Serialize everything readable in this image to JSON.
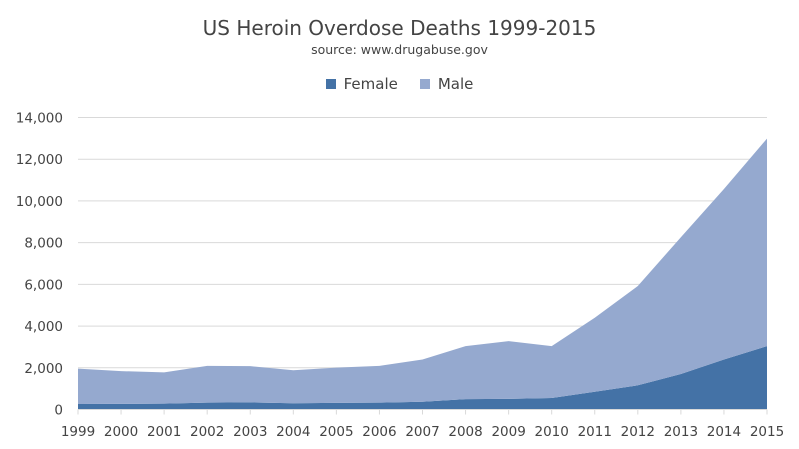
{
  "chart_data": {
    "type": "area",
    "stacked": true,
    "title": "US Heroin Overdose Deaths 1999-2015",
    "subtitle": "source: www.drugabuse.gov",
    "xlabel": "",
    "ylabel": "",
    "ylim": [
      0,
      14000
    ],
    "yticks": [
      "0",
      "2,000",
      "4,000",
      "6,000",
      "8,000",
      "10,000",
      "12,000",
      "14,000"
    ],
    "ytick_values": [
      0,
      2000,
      4000,
      6000,
      8000,
      10000,
      12000,
      14000
    ],
    "grid": true,
    "legend_position": "top",
    "categories": [
      "1999",
      "2000",
      "2001",
      "2002",
      "2003",
      "2004",
      "2005",
      "2006",
      "2007",
      "2008",
      "2009",
      "2010",
      "2011",
      "2012",
      "2013",
      "2014",
      "2015"
    ],
    "series": [
      {
        "name": "Female",
        "color": "#4472a6",
        "values": [
          264,
          270,
          280,
          330,
          340,
          300,
          320,
          330,
          370,
          500,
          510,
          550,
          850,
          1160,
          1700,
          2400,
          3040
        ]
      },
      {
        "name": "Male",
        "color": "#95a9cf",
        "values": [
          1696,
          1570,
          1500,
          1760,
          1740,
          1580,
          1690,
          1760,
          2030,
          2540,
          2770,
          2490,
          3550,
          4760,
          6560,
          8170,
          9950
        ]
      }
    ]
  }
}
